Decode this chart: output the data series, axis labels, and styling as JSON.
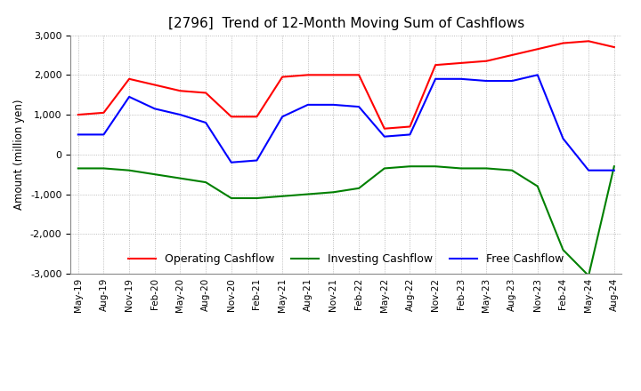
{
  "title": "[2796]  Trend of 12-Month Moving Sum of Cashflows",
  "ylabel": "Amount (million yen)",
  "ylim": [
    -3000,
    3000
  ],
  "yticks": [
    -3000,
    -2000,
    -1000,
    0,
    1000,
    2000,
    3000
  ],
  "x_labels": [
    "May-19",
    "Aug-19",
    "Nov-19",
    "Feb-20",
    "May-20",
    "Aug-20",
    "Nov-20",
    "Feb-21",
    "May-21",
    "Aug-21",
    "Nov-21",
    "Feb-22",
    "May-22",
    "Aug-22",
    "Nov-22",
    "Feb-23",
    "May-23",
    "Aug-23",
    "Nov-23",
    "Feb-24",
    "May-24",
    "Aug-24"
  ],
  "operating": [
    1000,
    1050,
    1900,
    1750,
    1600,
    1550,
    950,
    950,
    1950,
    2000,
    2000,
    2000,
    650,
    700,
    2250,
    2300,
    2350,
    2500,
    2650,
    2800,
    2850,
    2700
  ],
  "investing": [
    -350,
    -350,
    -400,
    -500,
    -600,
    -700,
    -1100,
    -1100,
    -1050,
    -1000,
    -950,
    -850,
    -350,
    -300,
    -300,
    -350,
    -350,
    -400,
    -800,
    -2400,
    -3050,
    -300
  ],
  "free": [
    500,
    500,
    1450,
    1150,
    1000,
    800,
    -200,
    -150,
    950,
    1250,
    1250,
    1200,
    450,
    500,
    1900,
    1900,
    1850,
    1850,
    2000,
    400,
    -400,
    -400
  ],
  "line_colors": {
    "operating": "#ff0000",
    "investing": "#008000",
    "free": "#0000ff"
  },
  "legend_labels": [
    "Operating Cashflow",
    "Investing Cashflow",
    "Free Cashflow"
  ],
  "background_color": "#ffffff",
  "grid_color": "#aaaaaa"
}
